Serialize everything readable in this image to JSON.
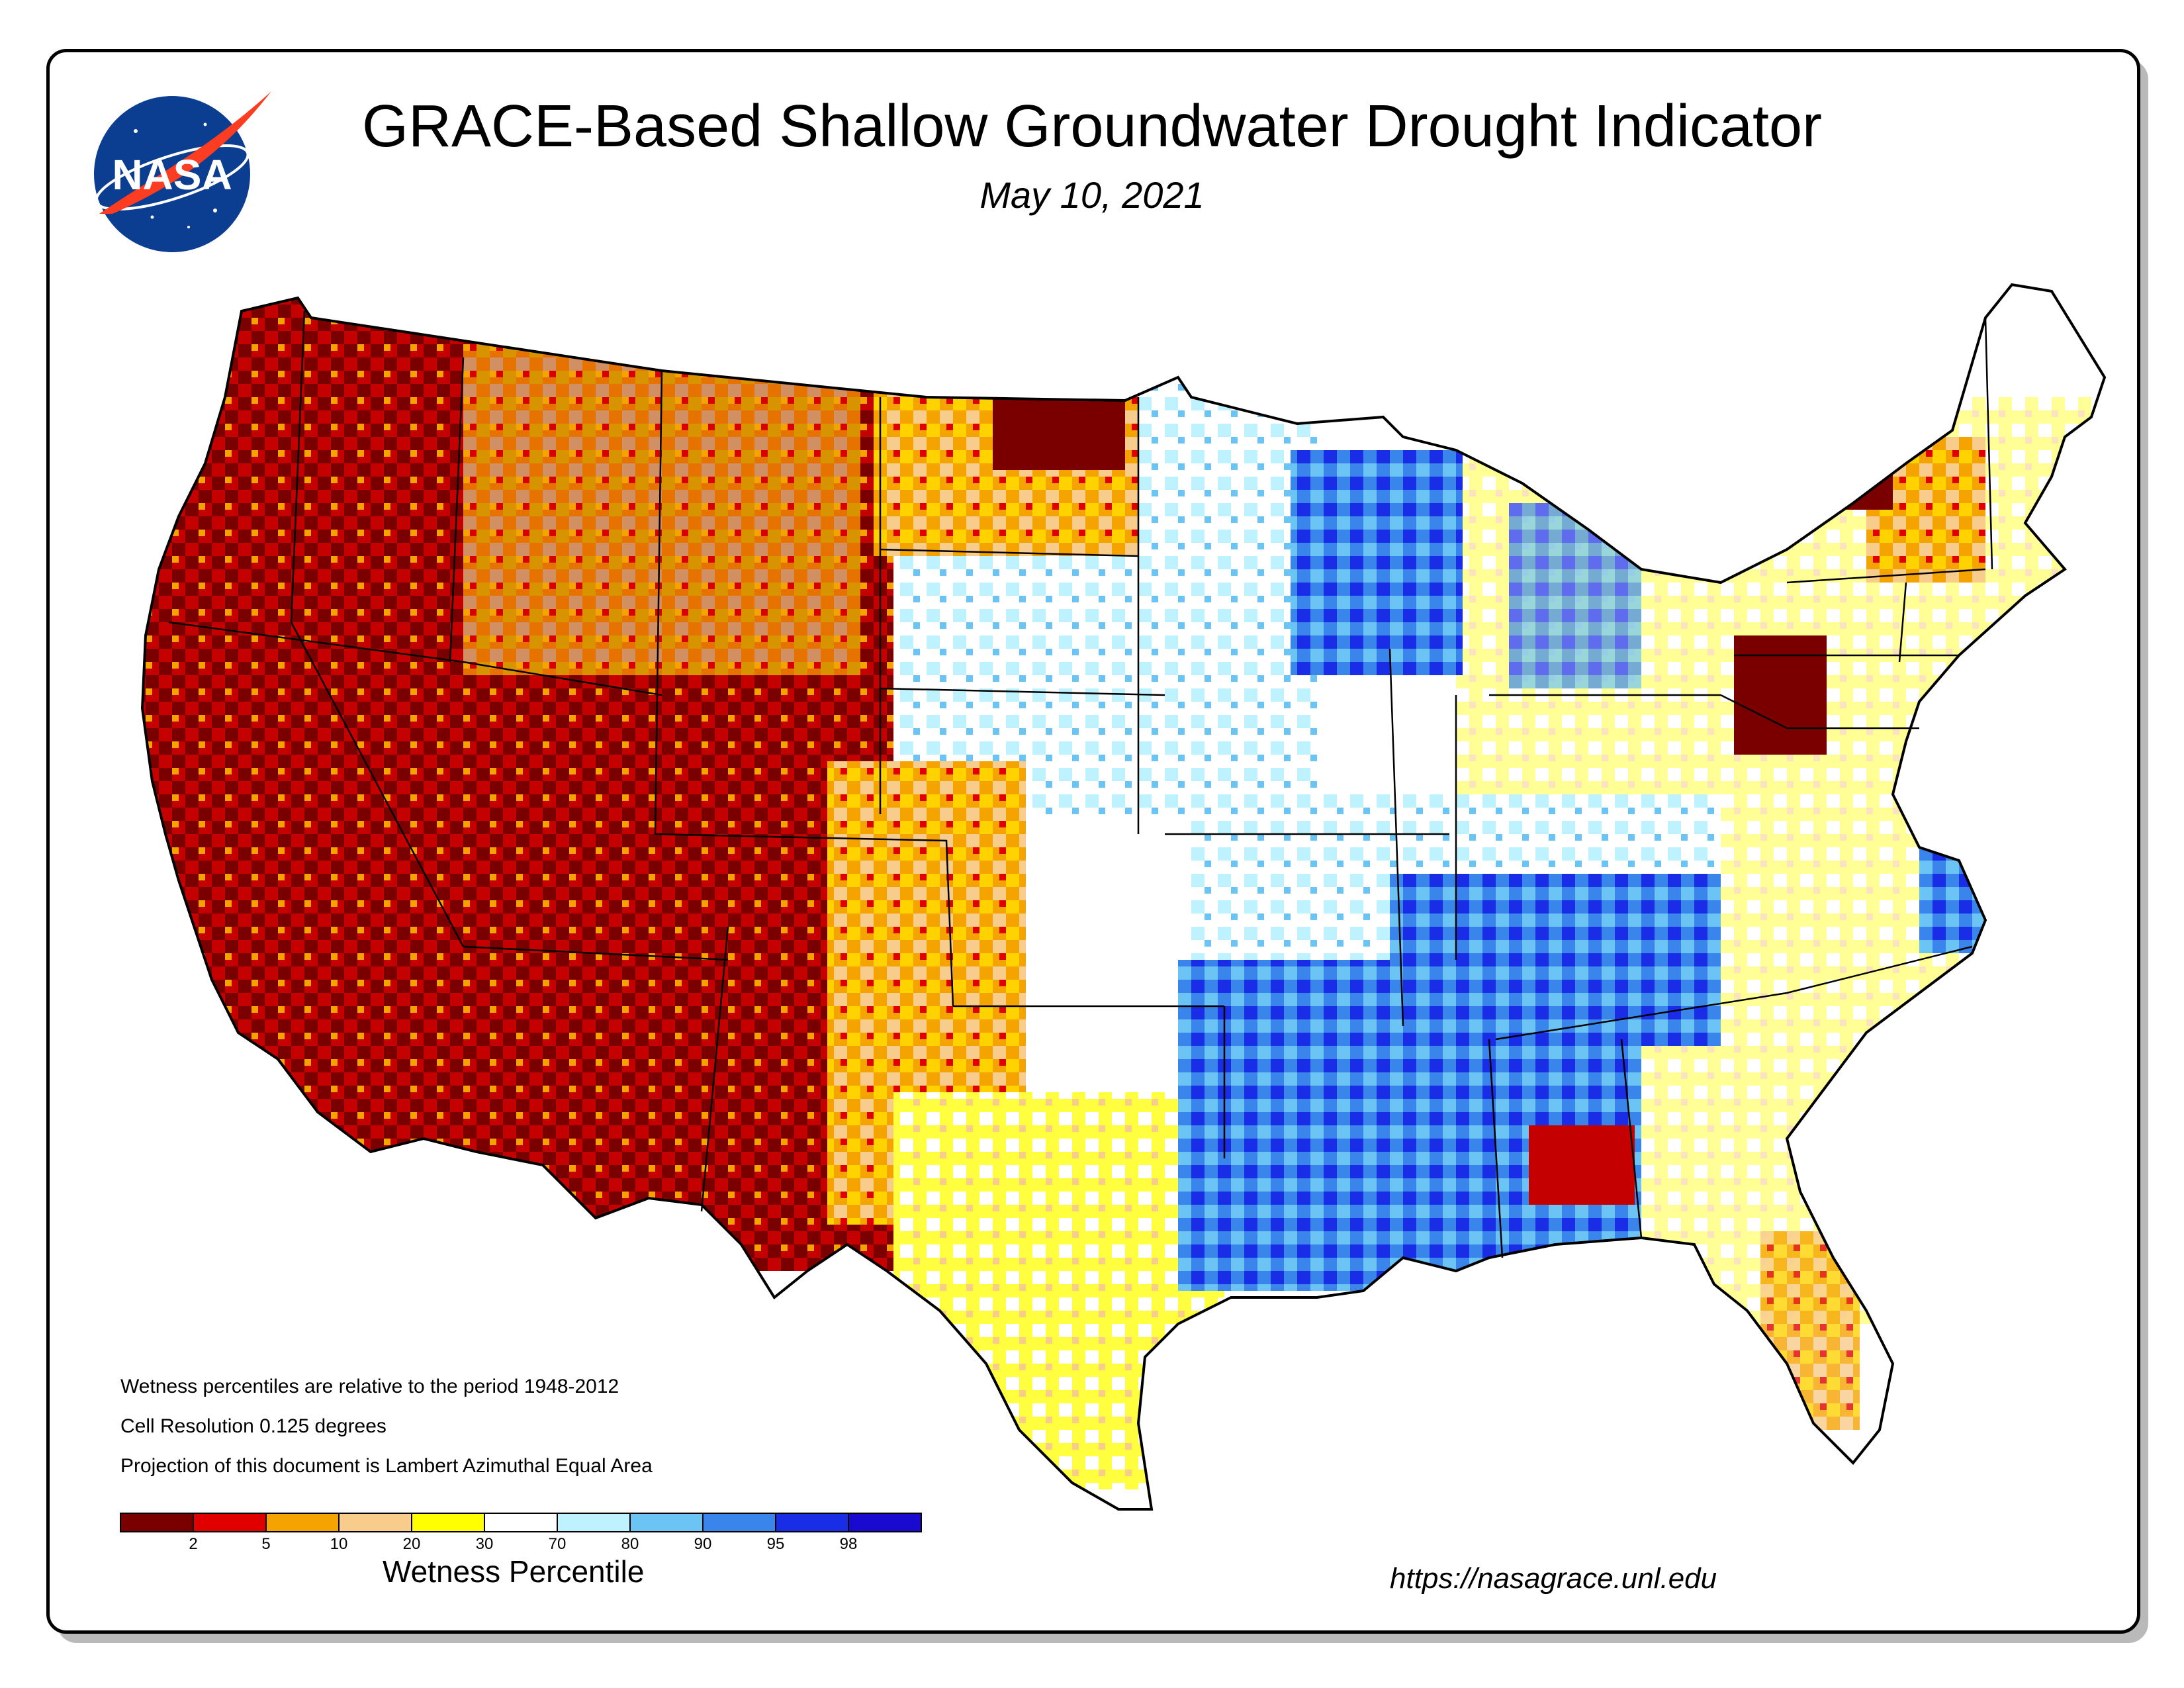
{
  "header": {
    "title": "GRACE-Based Shallow Groundwater Drought Indicator",
    "date": "May 10, 2021",
    "logo_text": "NASA"
  },
  "notes": {
    "line1": "Wetness percentiles are relative to the period 1948-2012",
    "line2": "Cell Resolution 0.125 degrees",
    "line3": "Projection of this document is Lambert Azimuthal Equal Area"
  },
  "legend": {
    "title": "Wetness Percentile",
    "tick_labels": [
      "2",
      "5",
      "10",
      "20",
      "30",
      "70",
      "80",
      "90",
      "95",
      "98"
    ],
    "colors": [
      "#7a0000",
      "#e00000",
      "#f5a300",
      "#f8cc8a",
      "#ffff00",
      "#ffffff",
      "#bff2ff",
      "#6cc4f5",
      "#3a85ec",
      "#1a2de6",
      "#1a0ad0"
    ]
  },
  "footer": {
    "url": "https://nasagrace.unl.edu"
  },
  "colors": {
    "frame": "#000000",
    "border": "#000000",
    "nasa_blue": "#0b3d91",
    "nasa_red": "#fc3d21"
  }
}
